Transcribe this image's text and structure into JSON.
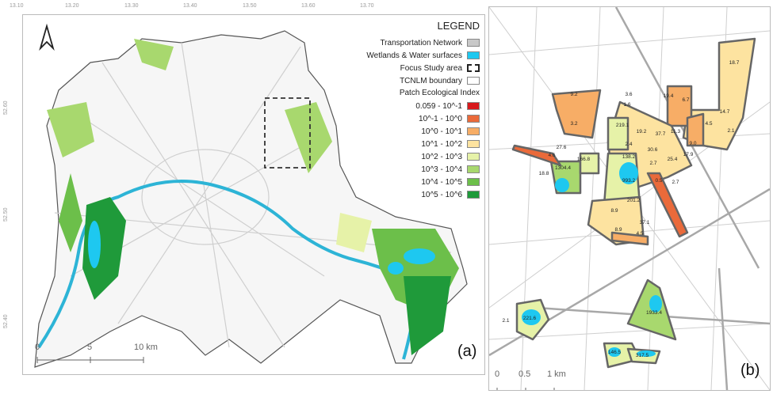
{
  "map_a": {
    "lon_ticks": [
      "13.10",
      "13.20",
      "13.30",
      "13.40",
      "13.50",
      "13.60",
      "13.70"
    ],
    "lat_ticks": [
      "52.60",
      "52.50",
      "52.40"
    ],
    "north_arrow": "north-arrow-icon",
    "legend": {
      "title": "LEGEND",
      "layers": [
        {
          "label": "Transportation Network",
          "color": "#c8c8c8"
        },
        {
          "label": "Wetlands & Water surfaces",
          "color": "#1ec8f0"
        },
        {
          "label": "Focus Study area",
          "color": "dashed"
        },
        {
          "label": "TCNLM boundary",
          "color": "#ffffff"
        }
      ],
      "index_title": "Patch Ecological Index",
      "classes": [
        {
          "label": "0.059 - 10^-1",
          "color": "#d7191c"
        },
        {
          "label": "10^-1 - 10^0",
          "color": "#ea6a3a"
        },
        {
          "label": "10^0 - 10^1",
          "color": "#f7ad66"
        },
        {
          "label": "10^1 - 10^2",
          "color": "#fde3a0"
        },
        {
          "label": "10^2 - 10^3",
          "color": "#e6f2a8"
        },
        {
          "label": "10^3 - 10^4",
          "color": "#a8d86e"
        },
        {
          "label": "10^4 - 10^5",
          "color": "#6cbf4a"
        },
        {
          "label": "10^5 - 10^6",
          "color": "#1f9a3a"
        }
      ]
    },
    "scale": {
      "t0": "0",
      "t1": "5",
      "t2": "10 km"
    },
    "panel_label": "(a)"
  },
  "map_b": {
    "patches": [
      {
        "v": "18.7",
        "c": 3
      },
      {
        "v": "9.2",
        "c": 2
      },
      {
        "v": "3.2",
        "c": 2
      },
      {
        "v": "19.4",
        "c": 3
      },
      {
        "v": "6.7",
        "c": 2
      },
      {
        "v": "4.5",
        "c": 2
      },
      {
        "v": "14.7",
        "c": 3
      },
      {
        "v": "2.1",
        "c": 2
      },
      {
        "v": "219.1",
        "c": 4
      },
      {
        "v": "19.2",
        "c": 3
      },
      {
        "v": "37.7",
        "c": 3
      },
      {
        "v": "11.3",
        "c": 3
      },
      {
        "v": "2.4",
        "c": 2
      },
      {
        "v": "9.0",
        "c": 2
      },
      {
        "v": "17.9",
        "c": 3
      },
      {
        "v": "30.6",
        "c": 3
      },
      {
        "v": "25.4",
        "c": 3
      },
      {
        "v": "138.2",
        "c": 4
      },
      {
        "v": "993.2",
        "c": 4
      },
      {
        "v": "2.7",
        "c": 2
      },
      {
        "v": "0.5",
        "c": 1
      },
      {
        "v": "2.7",
        "c": 2
      },
      {
        "v": "201.2",
        "c": 4
      },
      {
        "v": "8.9",
        "c": 2
      },
      {
        "v": "37.1",
        "c": 3
      },
      {
        "v": "8.9",
        "c": 2
      },
      {
        "v": "4.5",
        "c": 2
      },
      {
        "v": "1304.4",
        "c": 5
      },
      {
        "v": "166.8",
        "c": 4
      },
      {
        "v": "18.8",
        "c": 3
      },
      {
        "v": "4.6",
        "c": 2
      },
      {
        "v": "27.6",
        "c": 3
      },
      {
        "v": "3.6",
        "c": 2
      },
      {
        "v": "1.6",
        "c": 2
      },
      {
        "v": "221.6",
        "c": 4
      },
      {
        "v": "2.1",
        "c": 2
      },
      {
        "v": "1933.4",
        "c": 5
      },
      {
        "v": "146.5",
        "c": 4
      },
      {
        "v": "317.5",
        "c": 4
      }
    ],
    "scale": {
      "t0": "0",
      "t1": "0.5",
      "t2": "1 km"
    },
    "panel_label": "(b)"
  }
}
